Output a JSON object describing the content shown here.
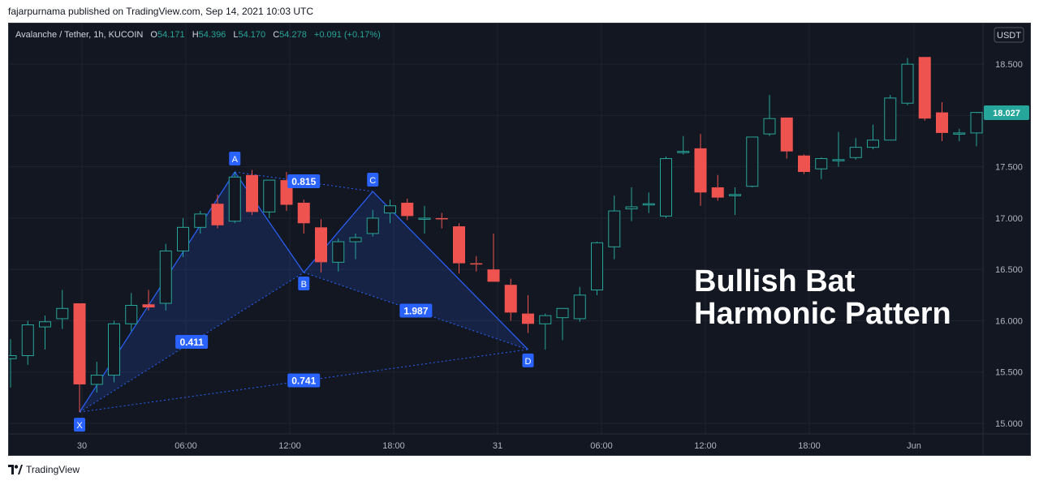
{
  "header": {
    "publish_line": "fajarpurnama published on TradingView.com, Sep 14, 2021 10:03 UTC",
    "symbol": "Avalanche / Tether, 1h, KUCOIN",
    "ohlc": {
      "o_label": "O",
      "o_value": "54.171",
      "h_label": "H",
      "h_value": "54.396",
      "l_label": "L",
      "l_value": "54.170",
      "c_label": "C",
      "c_value": "54.278",
      "change": "+0.091 (+0.17%)"
    },
    "currency": "USDT"
  },
  "footer": {
    "brand": "TradingView"
  },
  "annotation": {
    "line1": "Bullish Bat",
    "line2": "Harmonic Pattern"
  },
  "colors": {
    "background": "#131722",
    "bull": "#26a69a",
    "bear": "#ef5350",
    "pattern": "#2962ff",
    "label_bg": "#2962ff",
    "last_price_bg": "#26a69a"
  },
  "chart_data": {
    "type": "candlestick",
    "y_axis": {
      "ticks": [
        "15.000",
        "15.500",
        "16.000",
        "16.500",
        "17.000",
        "17.500",
        "18.000",
        "18.500"
      ],
      "ylim": [
        14.85,
        18.58
      ]
    },
    "x_axis": {
      "ticks": [
        "30",
        "06:00",
        "12:00",
        "18:00",
        "31",
        "06:00",
        "12:00",
        "18:00",
        "Jun"
      ]
    },
    "last_price": "18.027",
    "candles": [
      {
        "o": 15.63,
        "h": 15.82,
        "l": 15.35,
        "c": 15.66
      },
      {
        "o": 15.66,
        "h": 16.0,
        "l": 15.57,
        "c": 15.96
      },
      {
        "o": 15.94,
        "h": 16.05,
        "l": 15.72,
        "c": 15.99
      },
      {
        "o": 16.02,
        "h": 16.3,
        "l": 15.92,
        "c": 16.12
      },
      {
        "o": 16.17,
        "h": 16.17,
        "l": 15.11,
        "c": 15.38
      },
      {
        "o": 15.38,
        "h": 15.6,
        "l": 15.3,
        "c": 15.47
      },
      {
        "o": 15.47,
        "h": 16.0,
        "l": 15.4,
        "c": 15.97
      },
      {
        "o": 15.97,
        "h": 16.27,
        "l": 15.9,
        "c": 16.15
      },
      {
        "o": 16.16,
        "h": 16.3,
        "l": 16.1,
        "c": 16.13
      },
      {
        "o": 16.17,
        "h": 16.75,
        "l": 16.1,
        "c": 16.68
      },
      {
        "o": 16.68,
        "h": 17.0,
        "l": 16.62,
        "c": 16.91
      },
      {
        "o": 16.91,
        "h": 17.07,
        "l": 16.85,
        "c": 17.04
      },
      {
        "o": 17.14,
        "h": 17.23,
        "l": 16.9,
        "c": 16.93
      },
      {
        "o": 16.97,
        "h": 17.45,
        "l": 16.95,
        "c": 17.4
      },
      {
        "o": 17.42,
        "h": 17.47,
        "l": 17.03,
        "c": 17.06
      },
      {
        "o": 17.06,
        "h": 17.35,
        "l": 17.0,
        "c": 17.37
      },
      {
        "o": 17.37,
        "h": 17.45,
        "l": 17.07,
        "c": 17.13
      },
      {
        "o": 17.15,
        "h": 17.18,
        "l": 16.85,
        "c": 16.95
      },
      {
        "o": 16.91,
        "h": 16.99,
        "l": 16.47,
        "c": 16.57
      },
      {
        "o": 16.57,
        "h": 16.8,
        "l": 16.48,
        "c": 16.77
      },
      {
        "o": 16.77,
        "h": 16.85,
        "l": 16.6,
        "c": 16.81
      },
      {
        "o": 16.85,
        "h": 17.08,
        "l": 16.82,
        "c": 17.0
      },
      {
        "o": 17.05,
        "h": 17.18,
        "l": 16.95,
        "c": 17.12
      },
      {
        "o": 17.15,
        "h": 17.19,
        "l": 16.98,
        "c": 17.02
      },
      {
        "o": 17.0,
        "h": 17.12,
        "l": 16.85,
        "c": 17.0
      },
      {
        "o": 17.0,
        "h": 17.05,
        "l": 16.9,
        "c": 16.99
      },
      {
        "o": 16.92,
        "h": 16.95,
        "l": 16.46,
        "c": 16.56
      },
      {
        "o": 16.56,
        "h": 16.63,
        "l": 16.48,
        "c": 16.55
      },
      {
        "o": 16.5,
        "h": 16.85,
        "l": 16.38,
        "c": 16.38
      },
      {
        "o": 16.35,
        "h": 16.41,
        "l": 16.0,
        "c": 16.08
      },
      {
        "o": 16.07,
        "h": 16.25,
        "l": 15.88,
        "c": 15.97
      },
      {
        "o": 15.97,
        "h": 16.07,
        "l": 15.72,
        "c": 16.05
      },
      {
        "o": 16.03,
        "h": 16.12,
        "l": 15.81,
        "c": 16.12
      },
      {
        "o": 16.02,
        "h": 16.33,
        "l": 15.99,
        "c": 16.25
      },
      {
        "o": 16.3,
        "h": 16.77,
        "l": 16.25,
        "c": 16.76
      },
      {
        "o": 16.72,
        "h": 17.22,
        "l": 16.6,
        "c": 17.07
      },
      {
        "o": 17.09,
        "h": 17.3,
        "l": 16.97,
        "c": 17.11
      },
      {
        "o": 17.14,
        "h": 17.25,
        "l": 17.05,
        "c": 17.14
      },
      {
        "o": 17.02,
        "h": 17.6,
        "l": 17.0,
        "c": 17.58
      },
      {
        "o": 17.65,
        "h": 17.8,
        "l": 17.62,
        "c": 17.65
      },
      {
        "o": 17.68,
        "h": 17.82,
        "l": 17.12,
        "c": 17.25
      },
      {
        "o": 17.3,
        "h": 17.42,
        "l": 17.17,
        "c": 17.2
      },
      {
        "o": 17.23,
        "h": 17.3,
        "l": 17.03,
        "c": 17.23
      },
      {
        "o": 17.31,
        "h": 17.79,
        "l": 17.3,
        "c": 17.79
      },
      {
        "o": 17.82,
        "h": 18.2,
        "l": 17.8,
        "c": 17.97
      },
      {
        "o": 17.98,
        "h": 17.98,
        "l": 17.58,
        "c": 17.65
      },
      {
        "o": 17.61,
        "h": 17.62,
        "l": 17.43,
        "c": 17.45
      },
      {
        "o": 17.48,
        "h": 17.59,
        "l": 17.38,
        "c": 17.58
      },
      {
        "o": 17.57,
        "h": 17.84,
        "l": 17.5,
        "c": 17.57
      },
      {
        "o": 17.59,
        "h": 17.78,
        "l": 17.57,
        "c": 17.69
      },
      {
        "o": 17.69,
        "h": 17.91,
        "l": 17.67,
        "c": 17.76
      },
      {
        "o": 17.76,
        "h": 18.2,
        "l": 17.76,
        "c": 18.17
      },
      {
        "o": 18.12,
        "h": 18.56,
        "l": 18.1,
        "c": 18.5
      },
      {
        "o": 18.57,
        "h": 18.57,
        "l": 17.95,
        "c": 17.97
      },
      {
        "o": 18.03,
        "h": 18.13,
        "l": 17.75,
        "c": 17.83
      },
      {
        "o": 17.83,
        "h": 17.87,
        "l": 17.75,
        "c": 17.83
      },
      {
        "o": 17.83,
        "h": 18.03,
        "l": 17.7,
        "c": 18.03
      }
    ],
    "pattern": {
      "points": [
        {
          "label": "X",
          "index": 4,
          "price": 15.11
        },
        {
          "label": "A",
          "index": 13,
          "price": 17.45
        },
        {
          "label": "B",
          "index": 17,
          "price": 16.47
        },
        {
          "label": "C",
          "index": 21,
          "price": 17.26
        },
        {
          "label": "D",
          "index": 30,
          "price": 15.72
        }
      ],
      "ratios": [
        {
          "label": "0.411",
          "between": "XB"
        },
        {
          "label": "0.815",
          "between": "AC"
        },
        {
          "label": "1.987",
          "between": "BD"
        },
        {
          "label": "0.741",
          "between": "XD"
        }
      ]
    }
  }
}
